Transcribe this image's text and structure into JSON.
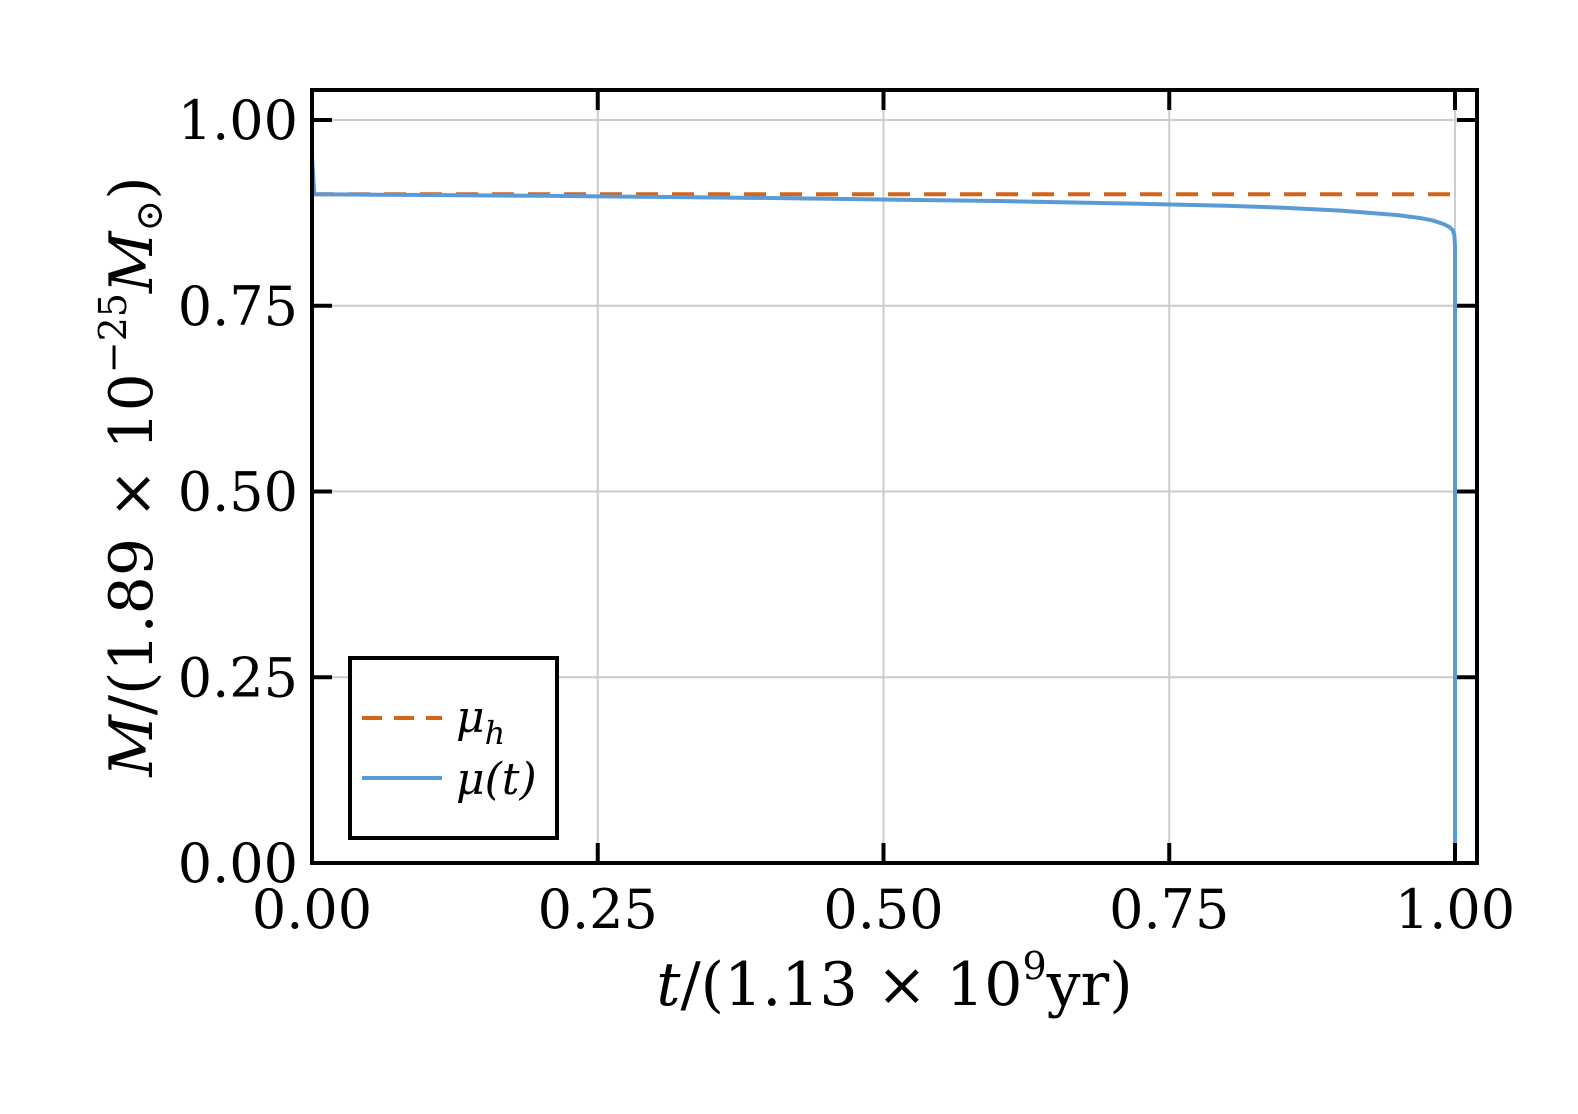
{
  "chart_data": {
    "type": "line",
    "xlabel_parts": {
      "var": "t",
      "pre": "/(1.13 × 10",
      "exp": "9",
      "post": "yr)"
    },
    "ylabel_parts": {
      "var": "M",
      "pre": "/(1.89 × 10",
      "exp": "−25",
      "mid": "M",
      "sub": "⊙",
      "post": ")"
    },
    "xlim": [
      0,
      1.0
    ],
    "ylim": [
      0,
      1.0
    ],
    "x_ticks": [
      0,
      0.25,
      0.5,
      0.75,
      1.0
    ],
    "x_tick_labels": [
      "0.00",
      "0.25",
      "0.50",
      "0.75",
      "1.00"
    ],
    "y_ticks": [
      0,
      0.25,
      0.5,
      0.75,
      1.0
    ],
    "y_tick_labels": [
      "0.00",
      "0.25",
      "0.50",
      "0.75",
      "1.00"
    ],
    "grid": true,
    "legend_position": "bottom-left",
    "series": [
      {
        "label_main": "μ",
        "label_sub": "h",
        "style": "dashed",
        "color": "#d4641c",
        "x": [
          0.0,
          1.0
        ],
        "y": [
          0.9,
          0.9
        ]
      },
      {
        "label_main": "μ(t)",
        "label_sub": "",
        "style": "solid",
        "color": "#5b9bd5",
        "x": [
          0.0,
          0.0,
          0.002,
          0.1,
          0.2,
          0.3,
          0.4,
          0.5,
          0.6,
          0.7,
          0.8,
          0.85,
          0.9,
          0.95,
          0.97,
          0.98,
          0.99,
          0.995,
          0.998,
          0.9995,
          1.0,
          1.0
        ],
        "y": [
          1.0,
          0.95,
          0.9,
          0.899,
          0.898,
          0.8965,
          0.895,
          0.893,
          0.891,
          0.888,
          0.8845,
          0.882,
          0.878,
          0.872,
          0.868,
          0.865,
          0.86,
          0.856,
          0.852,
          0.845,
          0.83,
          0.0
        ]
      }
    ]
  }
}
